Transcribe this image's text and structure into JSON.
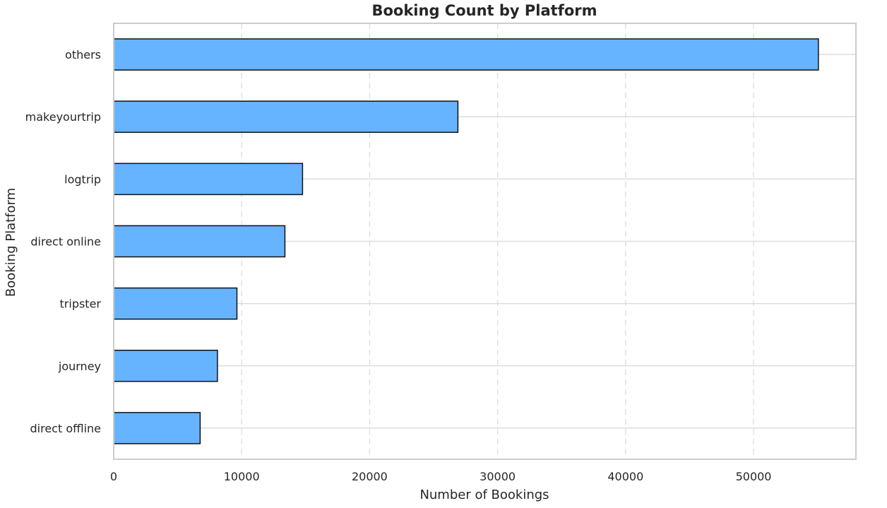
{
  "chart_data": {
    "type": "bar",
    "orientation": "horizontal",
    "title": "Booking Count by Platform",
    "xlabel": "Number of Bookings",
    "ylabel": "Booking Platform",
    "categories": [
      "others",
      "makeyourtrip",
      "logtrip",
      "direct online",
      "tripster",
      "journey",
      "direct offline"
    ],
    "values": [
      55066,
      26898,
      14756,
      13379,
      9630,
      8106,
      6755
    ],
    "xlim": [
      0,
      58000
    ],
    "xticks": [
      0,
      10000,
      20000,
      30000,
      40000,
      50000
    ],
    "xtick_labels": [
      "0",
      "10000",
      "20000",
      "30000",
      "40000",
      "50000"
    ],
    "grid": {
      "x": "dashed",
      "y": "solid"
    },
    "colors": {
      "bar_fill": "#66b3ff",
      "bar_edge": "#111111",
      "grid": "#dddddd",
      "frame": "#cccccc",
      "text": "#262626"
    }
  }
}
